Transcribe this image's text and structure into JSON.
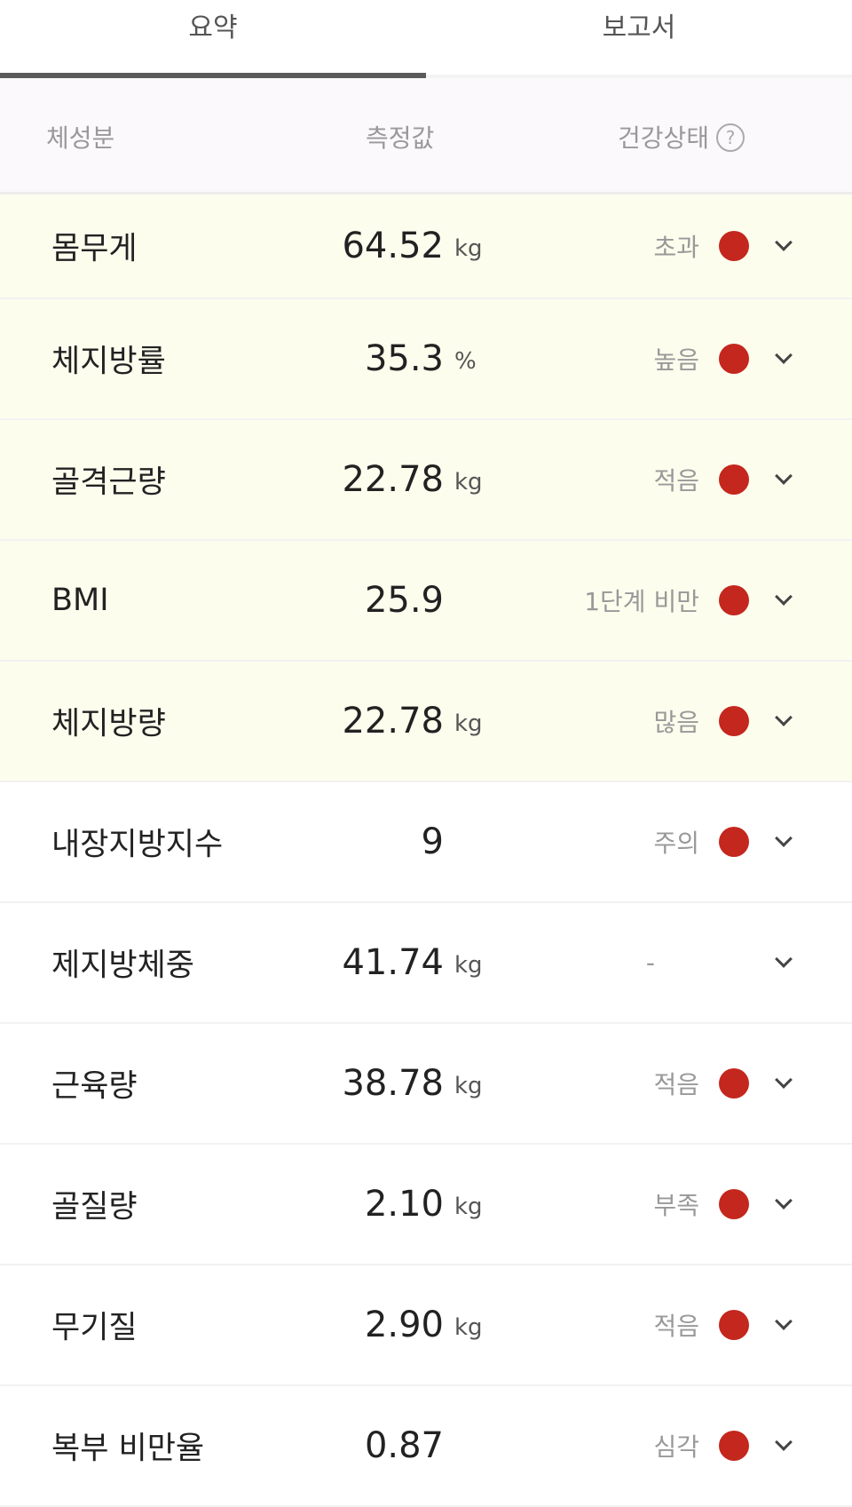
{
  "tabs": [
    {
      "label": "요약",
      "active": true
    },
    {
      "label": "보고서",
      "active": false
    }
  ],
  "header": {
    "col1": "체성분",
    "col2": "측정값",
    "col3": "건강상태",
    "help_icon": "question-circle-icon"
  },
  "colors": {
    "status_dot": "#c4271d",
    "highlight_row": "#fdfdee",
    "header_bg": "#fcf9fc"
  },
  "rows": [
    {
      "name": "몸무게",
      "value": "64.52",
      "unit": "kg",
      "status": "초과",
      "dot": true,
      "highlight": true
    },
    {
      "name": "체지방률",
      "value": "35.3",
      "unit": "%",
      "status": "높음",
      "dot": true,
      "highlight": true
    },
    {
      "name": "골격근량",
      "value": "22.78",
      "unit": "kg",
      "status": "적음",
      "dot": true,
      "highlight": true
    },
    {
      "name": "BMI",
      "value": "25.9",
      "unit": "",
      "status": "1단계 비만",
      "dot": true,
      "highlight": true
    },
    {
      "name": "체지방량",
      "value": "22.78",
      "unit": "kg",
      "status": "많음",
      "dot": true,
      "highlight": true
    },
    {
      "name": "내장지방지수",
      "value": "9",
      "unit": "",
      "status": "주의",
      "dot": true,
      "highlight": false
    },
    {
      "name": "제지방체중",
      "value": "41.74",
      "unit": "kg",
      "status": "-",
      "dot": false,
      "highlight": false
    },
    {
      "name": "근육량",
      "value": "38.78",
      "unit": "kg",
      "status": "적음",
      "dot": true,
      "highlight": false
    },
    {
      "name": "골질량",
      "value": "2.10",
      "unit": "kg",
      "status": "부족",
      "dot": true,
      "highlight": false
    },
    {
      "name": "무기질",
      "value": "2.90",
      "unit": "kg",
      "status": "적음",
      "dot": true,
      "highlight": false
    },
    {
      "name": "복부 비만율",
      "value": "0.87",
      "unit": "",
      "status": "심각",
      "dot": true,
      "highlight": false
    }
  ]
}
